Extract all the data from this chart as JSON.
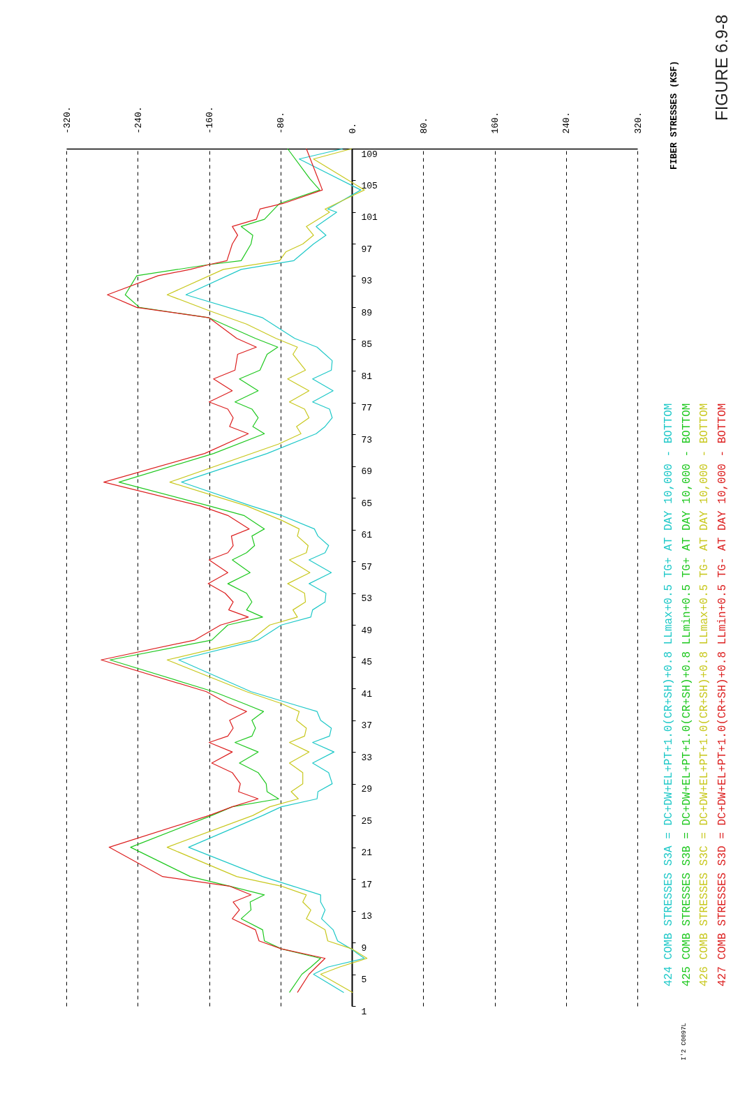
{
  "chart_data": {
    "type": "line",
    "orientation": "horizontal",
    "title": "FIGURE 6.9-8",
    "annotations": [
      "FIBER STRESSES (KSF)",
      "I'2 C0097L"
    ],
    "xlim": [
      -320,
      320
    ],
    "xticks": [
      {
        "value": -320,
        "label": "-320."
      },
      {
        "value": -240,
        "label": "-240."
      },
      {
        "value": -160,
        "label": "-160."
      },
      {
        "value": -80,
        "label": "-80."
      },
      {
        "value": 0,
        "label": "0."
      },
      {
        "value": 80,
        "label": "80."
      },
      {
        "value": 160,
        "label": "160."
      },
      {
        "value": 240,
        "label": "240."
      },
      {
        "value": 320,
        "label": "320."
      }
    ],
    "ylim": [
      1,
      109
    ],
    "yticks": [
      1,
      5,
      9,
      13,
      17,
      21,
      25,
      29,
      33,
      37,
      41,
      45,
      49,
      53,
      57,
      61,
      65,
      69,
      73,
      77,
      81,
      85,
      89,
      93,
      97,
      101,
      105,
      109
    ],
    "grid": "x",
    "legend": "right",
    "line_style": "solid",
    "series": [
      {
        "name": "424 COMB STRESSES S3A = DC+DW+EL+PT+1.0(CR+SH)+0.8 LLmax+0.5 TG+ AT DAY 10,000 - BOTTOM",
        "color": "#1ec8c8",
        "x": [
          2.7,
          5,
          5.9,
          7,
          8.2,
          9.2,
          10.6,
          12,
          13.1,
          14.1,
          15,
          16.1,
          17.3,
          21,
          25,
          26.1,
          27.1,
          28,
          29,
          30.4,
          31.6,
          33,
          34.2,
          35,
          36,
          37,
          38.1,
          39.1,
          40.6,
          44.6,
          47.1,
          49,
          50,
          50.9,
          51.9,
          53,
          54.2,
          55.6,
          57.2,
          58.1,
          59,
          60.2,
          61.1,
          62.8,
          64,
          67,
          70.6,
          73.1,
          74,
          75.1,
          76.2,
          77.1,
          78.5,
          80,
          81.1,
          82.3,
          84,
          85.1,
          87.7,
          90.6,
          93.8,
          94.9,
          97,
          98.1,
          99.2,
          101,
          101.4,
          103.8,
          107.7,
          109
        ],
        "values": [
          -9,
          -43,
          -27,
          14,
          -1,
          -16,
          -21,
          -34,
          -30,
          -35,
          -35,
          -66,
          -100,
          -183,
          -100,
          -79,
          -39,
          -38,
          -22,
          -26,
          -44,
          -20,
          -44,
          -25,
          -23,
          -35,
          -39,
          -69,
          -113,
          -194,
          -105,
          -79,
          -46,
          -44,
          -30,
          -29,
          -48,
          -23,
          -48,
          -30,
          -26,
          -38,
          -42,
          -79,
          -113,
          -191,
          -95,
          -40,
          -30,
          -22,
          -25,
          -44,
          -21,
          -44,
          -23,
          -22,
          -39,
          -64,
          -100,
          -186,
          -124,
          -65,
          -43,
          -29,
          -40,
          -17,
          -27,
          10,
          -59,
          -10
        ]
      },
      {
        "name": "425 COMB STRESSES S3B = DC+DW+EL+PT+1.0(CR+SH)+0.8 LLmin+0.5 TG+ AT DAY 10,000 - BOTTOM",
        "color": "#1ec81e",
        "x": [
          2.7,
          5,
          5.9,
          7,
          8.2,
          9.2,
          10.6,
          12,
          13.1,
          14.1,
          15,
          16.1,
          17.3,
          21,
          25,
          26.1,
          27.1,
          28,
          29,
          30.4,
          31.6,
          33,
          34.2,
          35,
          36,
          37,
          38.1,
          39.1,
          40.6,
          44.6,
          47.1,
          49,
          50,
          50.9,
          51.9,
          53,
          54.2,
          55.6,
          57.2,
          58.1,
          59,
          60.2,
          61.1,
          62.8,
          64,
          67,
          70.6,
          73.1,
          74,
          75.1,
          76.2,
          77.1,
          78.5,
          80,
          81.1,
          83.1,
          84,
          85.1,
          87.7,
          89,
          90.6,
          93,
          94.4,
          94.9,
          97,
          98.1,
          99.2,
          100.1,
          101.4,
          102.1,
          103.8,
          105.2,
          109
        ],
        "values": [
          -70,
          -56,
          -46,
          -35,
          -79,
          -98,
          -100,
          -124,
          -113,
          -114,
          -98,
          -137,
          -181,
          -248,
          -157,
          -134,
          -82,
          -95,
          -96,
          -105,
          -126,
          -105,
          -131,
          -112,
          -108,
          -112,
          -99,
          -121,
          -155,
          -271,
          -157,
          -139,
          -100,
          -118,
          -112,
          -118,
          -139,
          -114,
          -134,
          -118,
          -109,
          -112,
          -98,
          -121,
          -160,
          -261,
          -155,
          -98,
          -111,
          -105,
          -112,
          -131,
          -105,
          -126,
          -103,
          -95,
          -83,
          -108,
          -160,
          -238,
          -254,
          -241,
          -160,
          -124,
          -113,
          -111,
          -124,
          -98,
          -87,
          -81,
          -36,
          -47,
          -72
        ]
      },
      {
        "name": "426 COMB STRESSES S3C = DC+DW+EL+PT+1.0(CR+SH)+0.8 LLmax+0.5 TG- AT DAY 10,000 - BOTTOM",
        "color": "#c8c81e",
        "x": [
          2.7,
          5,
          5.9,
          7,
          8.2,
          9.2,
          10.6,
          12,
          13.1,
          14.1,
          15,
          16.1,
          17.3,
          21,
          25,
          26.1,
          27.1,
          28,
          29,
          30.4,
          31.6,
          33,
          34.2,
          35,
          36,
          37,
          38.1,
          39.1,
          40.6,
          44.6,
          47.1,
          49,
          50,
          50.9,
          51.9,
          53,
          54.2,
          55.6,
          57.2,
          58.1,
          59,
          60.2,
          61.1,
          62.2,
          64,
          67,
          71.8,
          73.1,
          74,
          75.1,
          76.2,
          77.1,
          78.5,
          80,
          81.1,
          83.1,
          84,
          85.1,
          86.9,
          88.6,
          90.6,
          93.8,
          94.9,
          96,
          97,
          98.1,
          99.2,
          101,
          101.4,
          103.8,
          107.7,
          109
        ],
        "values": [
          1,
          -35,
          -14,
          17,
          0,
          -27,
          -30,
          -51,
          -46,
          -55,
          -51,
          -79,
          -129,
          -207,
          -111,
          -92,
          -60,
          -68,
          -55,
          -55,
          -70,
          -48,
          -70,
          -53,
          -51,
          -62,
          -59,
          -79,
          -118,
          -207,
          -113,
          -92,
          -61,
          -66,
          -52,
          -53,
          -72,
          -47,
          -70,
          -51,
          -49,
          -61,
          -59,
          -79,
          -118,
          -204,
          -82,
          -57,
          -62,
          -48,
          -53,
          -70,
          -48,
          -72,
          -52,
          -66,
          -61,
          -85,
          -118,
          -160,
          -207,
          -144,
          -81,
          -74,
          -55,
          -43,
          -51,
          -25,
          -30,
          14,
          -43,
          0
        ]
      },
      {
        "name": "427 COMB STRESSES S3D = DC+DW+EL+PT+1.0(CR+SH)+0.8 LLmin+0.5 TG- AT DAY 10,000 - BOTTOM",
        "color": "#dc1e1e",
        "x": [
          2.7,
          5,
          5.9,
          7,
          8.2,
          9.2,
          10.6,
          12,
          13.1,
          14.1,
          15,
          16.1,
          17.3,
          21,
          25,
          26.1,
          27.1,
          28,
          29,
          30.4,
          31.6,
          33,
          34.2,
          35,
          36,
          37,
          38.1,
          39.1,
          40.6,
          44.6,
          47.1,
          49,
          50,
          50.9,
          51.9,
          53,
          54.2,
          55.6,
          57.2,
          58.1,
          59,
          60.2,
          61.1,
          62.8,
          64,
          67,
          70.6,
          73.1,
          74,
          75.1,
          76.2,
          77.1,
          78.5,
          80,
          81.1,
          83.1,
          84,
          85.1,
          87.7,
          89,
          90.6,
          93,
          93.8,
          94.4,
          94.9,
          97,
          98.1,
          99.2,
          100.1,
          101.4,
          102.1,
          103.8,
          109
        ],
        "values": [
          -61,
          -48,
          -40,
          -30,
          -79,
          -104,
          -108,
          -134,
          -126,
          -133,
          -113,
          -137,
          -212,
          -272,
          -160,
          -134,
          -105,
          -127,
          -125,
          -134,
          -157,
          -134,
          -160,
          -139,
          -133,
          -137,
          -118,
          -139,
          -163,
          -281,
          -176,
          -147,
          -116,
          -138,
          -133,
          -142,
          -161,
          -139,
          -160,
          -139,
          -133,
          -135,
          -115,
          -139,
          -170,
          -278,
          -165,
          -116,
          -137,
          -133,
          -139,
          -160,
          -134,
          -155,
          -131,
          -128,
          -107,
          -129,
          -160,
          -241,
          -274,
          -217,
          -181,
          -160,
          -140,
          -134,
          -128,
          -134,
          -107,
          -103,
          -77,
          -33,
          -51
        ]
      }
    ]
  }
}
